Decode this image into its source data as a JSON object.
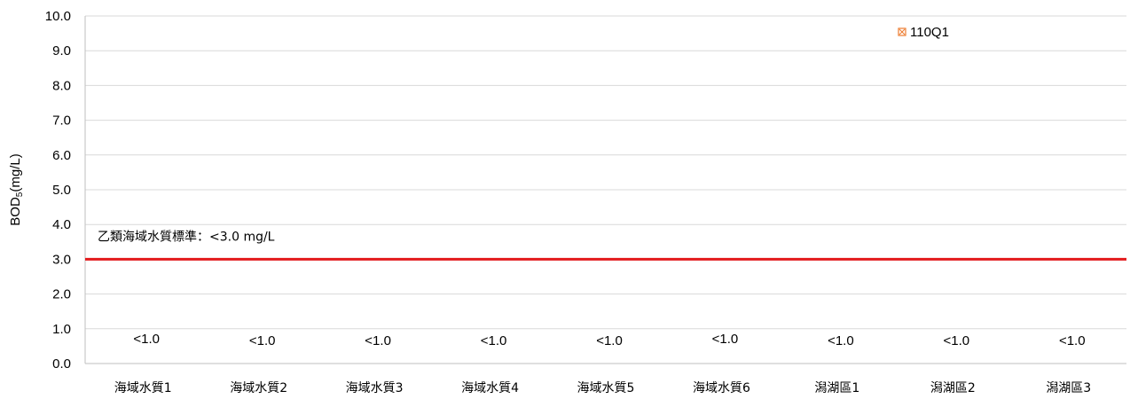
{
  "chart_data": {
    "type": "scatter",
    "ylabel_main": "BOD",
    "ylabel_sub": "5",
    "ylabel_unit": "(mg/L)",
    "ylim": [
      0,
      10
    ],
    "yticks": [
      "0.0",
      "1.0",
      "2.0",
      "3.0",
      "4.0",
      "5.0",
      "6.0",
      "7.0",
      "8.0",
      "9.0",
      "10.0"
    ],
    "grid": true,
    "categories": [
      "海域水質1",
      "海域水質2",
      "海域水質3",
      "海域水質4",
      "海域水質5",
      "海域水質6",
      "潟湖區1",
      "潟湖區2",
      "潟湖區3"
    ],
    "series": [
      {
        "name": "110Q1",
        "color": "#ed7d31",
        "values": [
          null,
          null,
          null,
          null,
          null,
          null,
          null,
          null,
          null
        ],
        "labels": [
          "<1.0",
          "<1.0",
          "<1.0",
          "<1.0",
          "<1.0",
          "<1.0",
          "<1.0",
          "<1.0",
          "<1.0"
        ]
      }
    ],
    "legend_position": "top-right",
    "reference_line": {
      "value": 3.0,
      "color": "#e31a1c",
      "label": "乙類海域水質標準：<3.0 mg/L"
    }
  }
}
